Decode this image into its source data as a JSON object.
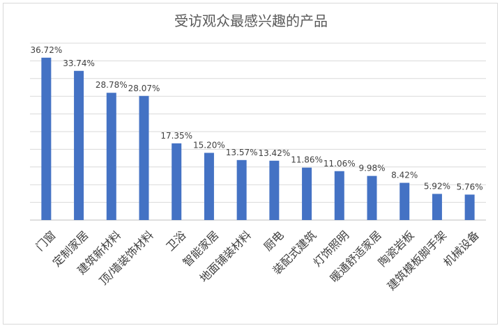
{
  "chart_data": {
    "type": "bar",
    "title": "受访观众最感兴趣的产品",
    "categories": [
      "门窗",
      "定制家居",
      "建筑新材料",
      "顶/墙装饰材料",
      "卫浴",
      "智能家居",
      "地面铺装材料",
      "厨电",
      "装配式建筑",
      "灯饰照明",
      "暖通舒适家居",
      "陶瓷岩板",
      "建筑模板脚手架",
      "机械设备"
    ],
    "values": [
      36.72,
      33.74,
      28.78,
      28.07,
      17.35,
      15.2,
      13.57,
      13.42,
      11.86,
      11.06,
      9.98,
      8.42,
      5.92,
      5.76
    ],
    "data_labels": [
      "36.72%",
      "33.74%",
      "28.78%",
      "28.07%",
      "17.35%",
      "15.20%",
      "13.57%",
      "13.42%",
      "11.86%",
      "11.06%",
      "9.98%",
      "8.42%",
      "5.92%",
      "5.76%"
    ],
    "ylim": [
      0,
      40
    ],
    "grid": true,
    "bar_color": "#4472c4"
  }
}
